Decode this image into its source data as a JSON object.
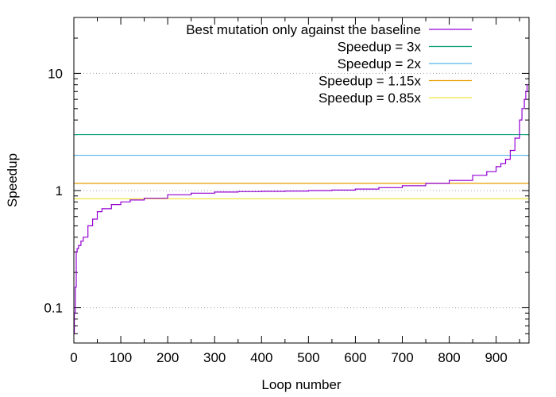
{
  "chart_data": {
    "type": "line",
    "title": "",
    "xlabel": "Loop number",
    "ylabel": "Speedup",
    "y_scale": "log",
    "xlim": [
      0,
      970
    ],
    "ylim": [
      0.05,
      30
    ],
    "x_ticks": [
      0,
      100,
      200,
      300,
      400,
      500,
      600,
      700,
      800,
      900
    ],
    "y_ticks": [
      {
        "value": 0.1,
        "label": "0.1"
      },
      {
        "value": 1,
        "label": "1"
      },
      {
        "value": 10,
        "label": "10"
      }
    ],
    "grid": "dotted horizontal lines at y-ticks",
    "legend_position": "top-right",
    "series": [
      {
        "name": "Best mutation only against the baseline",
        "color": "#9400d3",
        "x": [
          0,
          1,
          3,
          5,
          7,
          10,
          15,
          20,
          30,
          40,
          50,
          60,
          80,
          100,
          120,
          150,
          200,
          250,
          300,
          350,
          400,
          450,
          500,
          550,
          600,
          650,
          700,
          750,
          800,
          850,
          880,
          900,
          910,
          920,
          930,
          940,
          950,
          955,
          960,
          963,
          966
        ],
        "y": [
          0.06,
          0.09,
          0.15,
          0.3,
          0.32,
          0.34,
          0.37,
          0.4,
          0.5,
          0.57,
          0.66,
          0.7,
          0.76,
          0.8,
          0.83,
          0.86,
          0.92,
          0.95,
          0.97,
          0.98,
          0.985,
          0.99,
          1.0,
          1.01,
          1.03,
          1.06,
          1.1,
          1.15,
          1.22,
          1.35,
          1.45,
          1.6,
          1.7,
          1.85,
          2.2,
          2.8,
          4.0,
          5.0,
          6.0,
          7.0,
          8.0
        ]
      },
      {
        "name": "Speedup = 3x",
        "color": "#009e73",
        "constant": 3
      },
      {
        "name": "Speedup = 2x",
        "color": "#56b4e9",
        "constant": 2
      },
      {
        "name": "Speedup = 1.15x",
        "color": "#e69f00",
        "constant": 1.15
      },
      {
        "name": "Speedup = 0.85x",
        "color": "#f0e442",
        "constant": 0.85
      }
    ]
  }
}
